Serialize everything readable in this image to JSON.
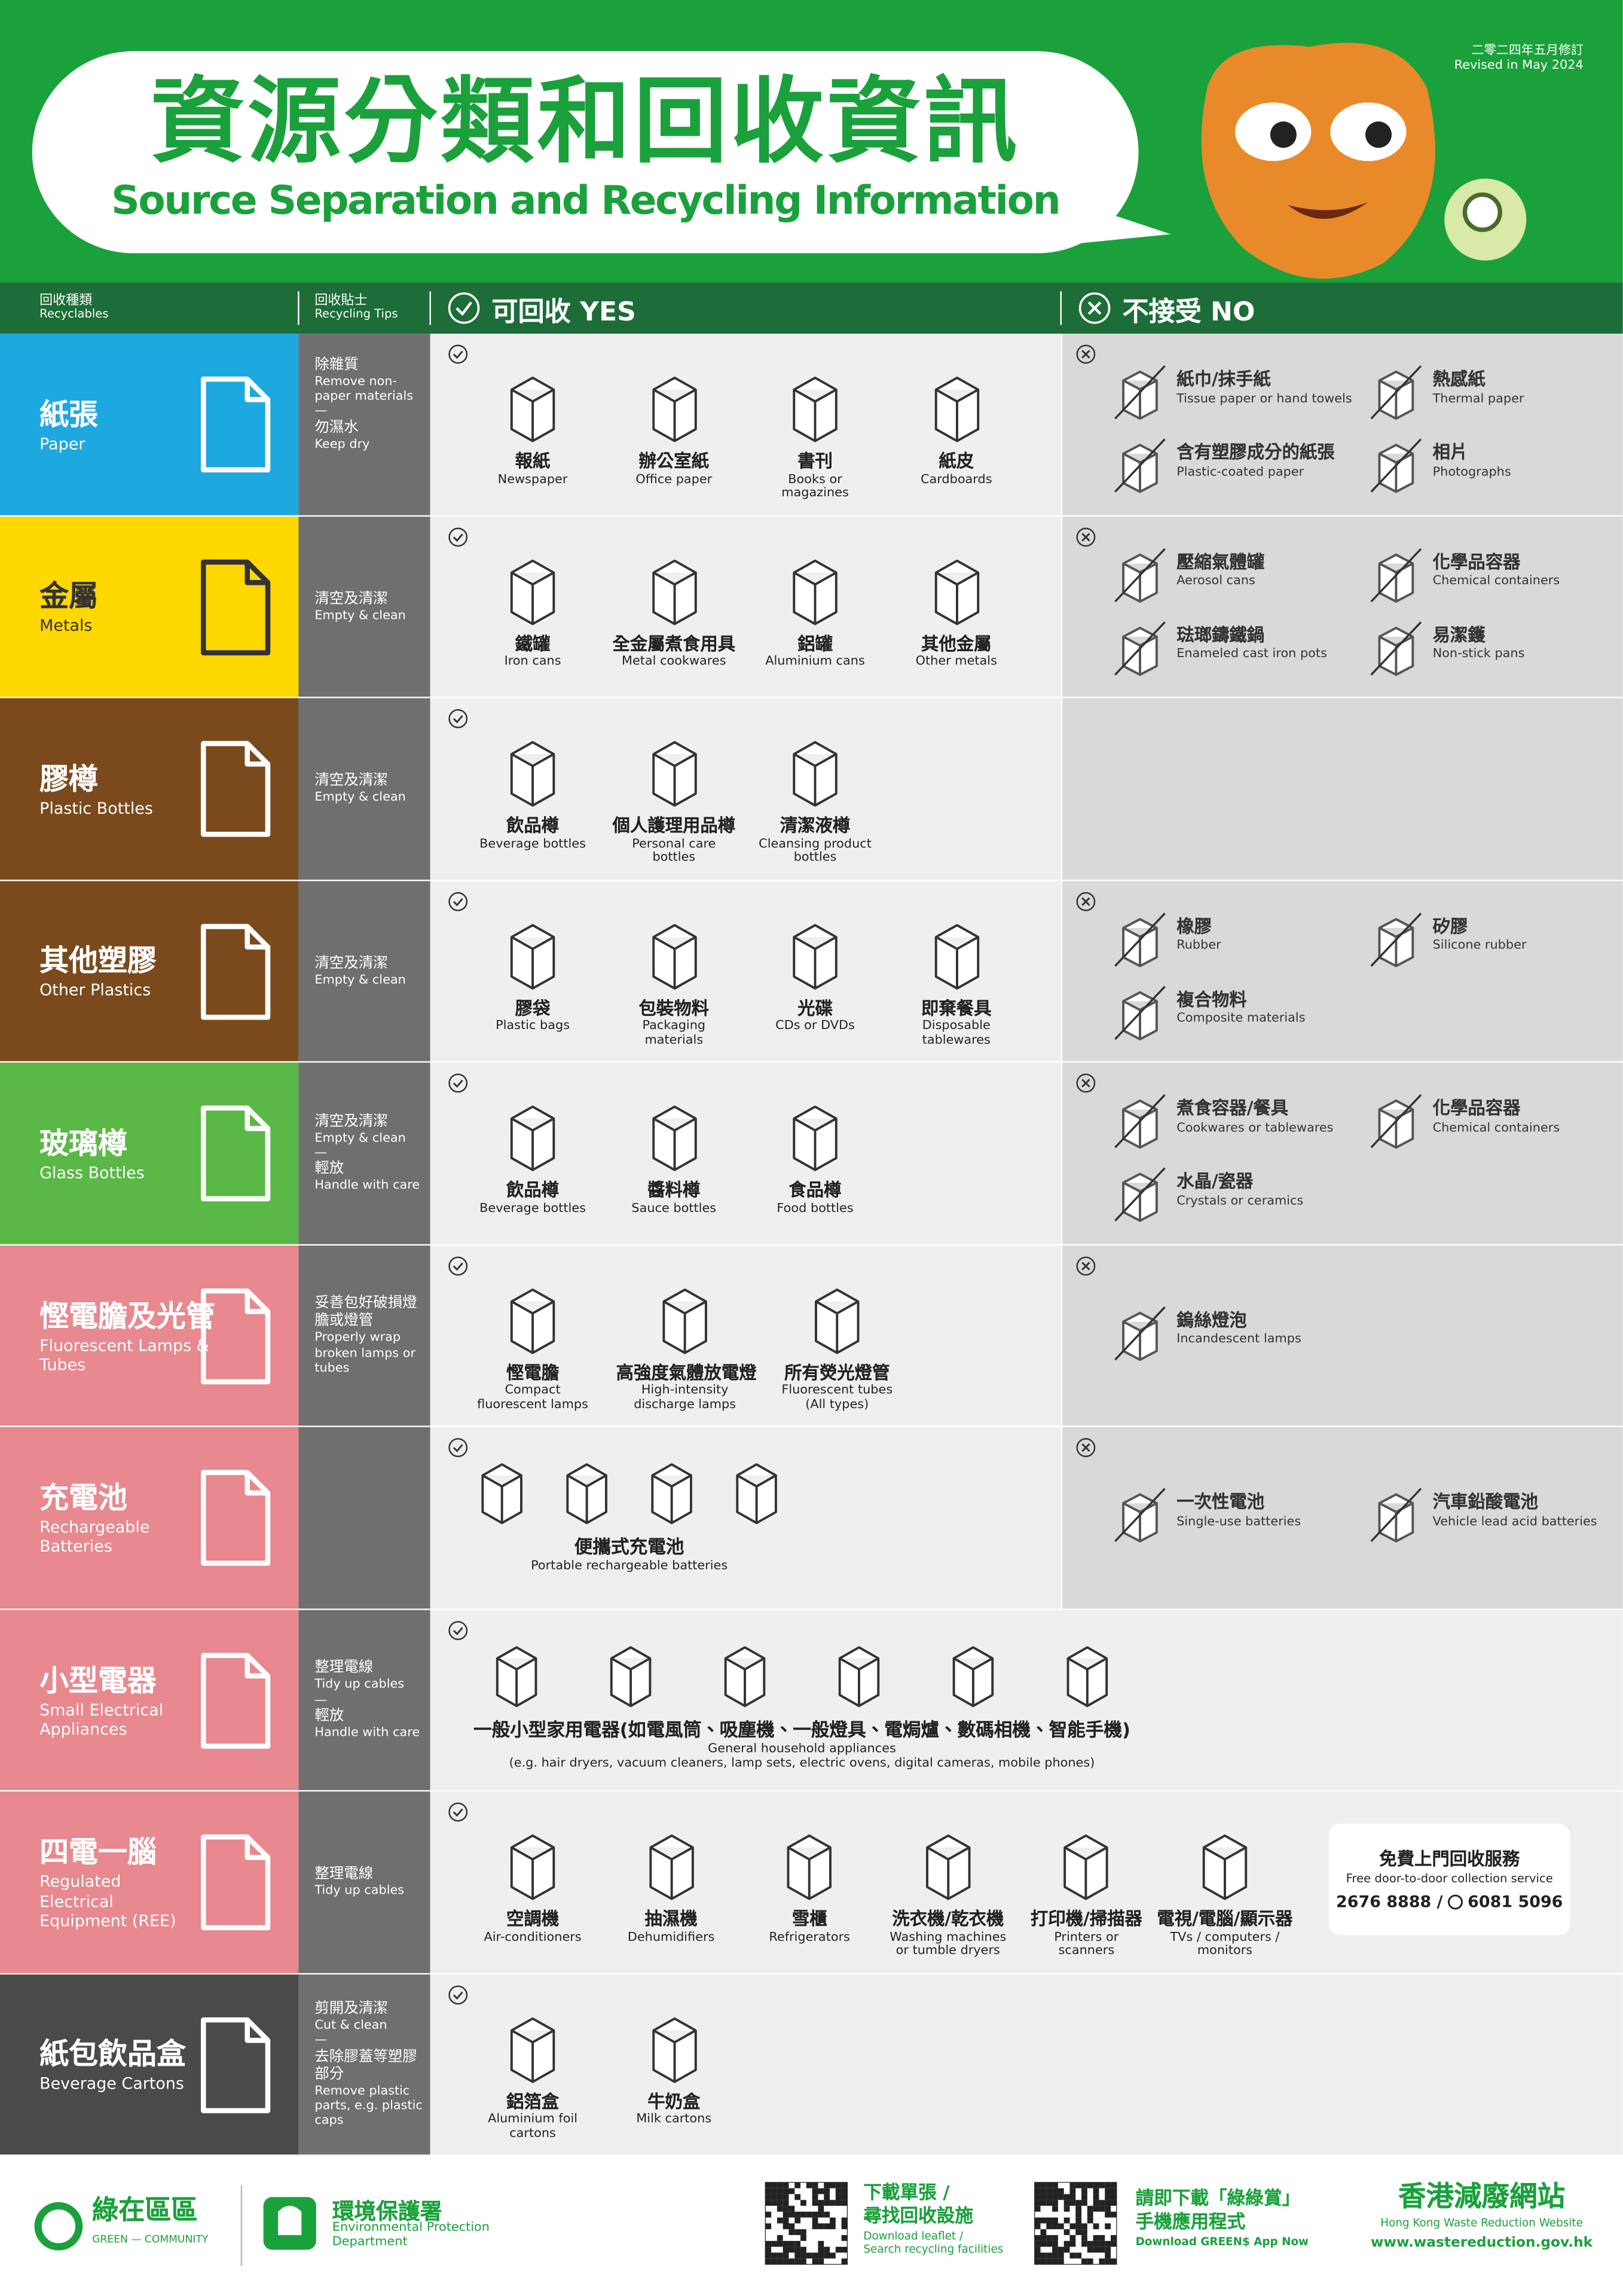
{
  "header": {
    "title_zh": "資源分類和回收資訊",
    "title_en": "Source Separation and Recycling Information",
    "revised_zh": "二零二四年五月修訂",
    "revised_en": "Revised in May 2024"
  },
  "columns": {
    "category_zh": "回收種類",
    "category_en": "Recyclables",
    "tips_zh": "回收貼士",
    "tips_en": "Recycling Tips",
    "yes": "可回收 YES",
    "no": "不接受 NO"
  },
  "rows": [
    {
      "name_zh": "紙張",
      "name_en": "Paper",
      "tips": [
        "除雜質",
        "Remove non-paper materials",
        "—",
        "勿濕水",
        "Keep dry"
      ],
      "yes": [
        {
          "zh": "報紙",
          "en": "Newspaper"
        },
        {
          "zh": "辦公室紙",
          "en": "Office paper"
        },
        {
          "zh": "書刊",
          "en": "Books or magazines"
        },
        {
          "zh": "紙皮",
          "en": "Cardboards"
        }
      ],
      "no": [
        {
          "zh": "紙巾/抹手紙",
          "en": "Tissue paper or hand towels"
        },
        {
          "zh": "熱感紙",
          "en": "Thermal paper"
        },
        {
          "zh": "含有塑膠成分的紙張",
          "en": "Plastic-coated paper"
        },
        {
          "zh": "相片",
          "en": "Photographs"
        }
      ]
    },
    {
      "name_zh": "金屬",
      "name_en": "Metals",
      "tips": [
        "清空及清潔",
        "Empty & clean"
      ],
      "yes": [
        {
          "zh": "鐵罐",
          "en": "Iron cans"
        },
        {
          "zh": "全金屬煮食用具",
          "en": "Metal cookwares"
        },
        {
          "zh": "鋁罐",
          "en": "Aluminium cans"
        },
        {
          "zh": "其他金屬",
          "en": "Other metals"
        }
      ],
      "no": [
        {
          "zh": "壓縮氣體罐",
          "en": "Aerosol cans"
        },
        {
          "zh": "化學品容器",
          "en": "Chemical containers"
        },
        {
          "zh": "琺瑯鑄鐵鍋",
          "en": "Enameled cast iron pots"
        },
        {
          "zh": "易潔鑊",
          "en": "Non-stick pans"
        }
      ]
    },
    {
      "name_zh": "膠樽",
      "name_en": "Plastic Bottles",
      "tips": [
        "清空及清潔",
        "Empty & clean"
      ],
      "yes": [
        {
          "zh": "飲品樽",
          "en": "Beverage bottles"
        },
        {
          "zh": "個人護理用品樽",
          "en": "Personal care bottles"
        },
        {
          "zh": "清潔液樽",
          "en": "Cleansing product bottles"
        }
      ]
    },
    {
      "name_zh": "其他塑膠",
      "name_en": "Other Plastics",
      "tips": [
        "清空及清潔",
        "Empty & clean"
      ],
      "yes": [
        {
          "zh": "膠袋",
          "en": "Plastic bags"
        },
        {
          "zh": "包裝物料",
          "en": "Packaging materials"
        },
        {
          "zh": "光碟",
          "en": "CDs or DVDs"
        },
        {
          "zh": "即棄餐具",
          "en": "Disposable tablewares"
        }
      ],
      "no": [
        {
          "zh": "橡膠",
          "en": "Rubber"
        },
        {
          "zh": "矽膠",
          "en": "Silicone rubber"
        },
        {
          "zh": "複合物料",
          "en": "Composite materials"
        }
      ]
    },
    {
      "name_zh": "玻璃樽",
      "name_en": "Glass Bottles",
      "tips": [
        "清空及清潔",
        "Empty & clean",
        "—",
        "輕放",
        "Handle with care"
      ],
      "yes": [
        {
          "zh": "飲品樽",
          "en": "Beverage bottles"
        },
        {
          "zh": "醬料樽",
          "en": "Sauce bottles"
        },
        {
          "zh": "食品樽",
          "en": "Food bottles"
        }
      ],
      "no": [
        {
          "zh": "煮食容器/餐具",
          "en": "Cookwares or tablewares"
        },
        {
          "zh": "化學品容器",
          "en": "Chemical containers"
        },
        {
          "zh": "水晶/瓷器",
          "en": "Crystals or ceramics"
        }
      ]
    },
    {
      "name_zh": "慳電膽及光管",
      "name_en": "Fluorescent Lamps & Tubes",
      "tips": [
        "妥善包好破損燈膽或燈管",
        "Properly wrap broken lamps or tubes"
      ],
      "yes": [
        {
          "zh": "慳電膽",
          "en": "Compact fluorescent lamps"
        },
        {
          "zh": "高強度氣體放電燈",
          "en": "High-intensity discharge lamps"
        },
        {
          "zh": "所有熒光燈管",
          "en": "Fluorescent tubes (All types)"
        }
      ],
      "no": [
        {
          "zh": "鎢絲燈泡",
          "en": "Incandescent lamps"
        }
      ]
    },
    {
      "name_zh": "充電池",
      "name_en": "Rechargeable Batteries",
      "tips": [],
      "yes": [
        {
          "zh": "便攜式充電池",
          "en": "Portable rechargeable batteries"
        }
      ],
      "no": [
        {
          "zh": "一次性電池",
          "en": "Single-use batteries"
        },
        {
          "zh": "汽車鉛酸電池",
          "en": "Vehicle lead acid batteries"
        }
      ]
    },
    {
      "name_zh": "小型電器",
      "name_en": "Small Electrical Appliances",
      "tips": [
        "整理電線",
        "Tidy up cables",
        "—",
        "輕放",
        "Handle with care"
      ],
      "yes": [
        {
          "zh": "一般小型家用電器(如電風筒、吸塵機、一般燈具、電焗爐、數碼相機、智能手機)",
          "en": "General household appliances",
          "note": "(e.g. hair dryers, vacuum cleaners, lamp sets, electric ovens, digital cameras, mobile phones)"
        }
      ]
    },
    {
      "name_zh": "四電一腦",
      "name_en": "Regulated Electrical Equipment (REE)",
      "tips": [
        "整理電線",
        "Tidy up cables"
      ],
      "yes": [
        {
          "zh": "空調機",
          "en": "Air-conditioners"
        },
        {
          "zh": "抽濕機",
          "en": "Dehumidifiers"
        },
        {
          "zh": "雪櫃",
          "en": "Refrigerators"
        },
        {
          "zh": "洗衣機/乾衣機",
          "en": "Washing machines or tumble dryers"
        },
        {
          "zh": "打印機/掃描器",
          "en": "Printers or scanners"
        },
        {
          "zh": "電視/電腦/顯示器",
          "en": "TVs / computers / monitors"
        }
      ]
    },
    {
      "name_zh": "紙包飲品盒",
      "name_en": "Beverage Cartons",
      "tips": [
        "剪開及清潔",
        "Cut & clean",
        "—",
        "去除膠蓋等塑膠部分",
        "Remove plastic parts, e.g. plastic caps"
      ],
      "yes": [
        {
          "zh": "鋁箔盒",
          "en": "Aluminium foil cartons"
        },
        {
          "zh": "牛奶盒",
          "en": "Milk cartons"
        }
      ]
    }
  ],
  "service": {
    "title_zh": "免費上門回收服務",
    "title_en": "Free door-to-door collection service",
    "phone_1": "2676 8888 /",
    "phone_2": "6081 5096"
  },
  "footer": {
    "brand_zh": "綠在區區",
    "brand_en": "GREEN — COMMUNITY",
    "epd_zh": "環境保護署",
    "epd_en": "Environmental Protection Department",
    "leaflet_zh": [
      "下載單張 /",
      "尋找回收設施"
    ],
    "leaflet_en": [
      "Download leaflet /",
      "Search recycling facilities"
    ],
    "app_zh": [
      "請即下載「綠綠賞」",
      "手機應用程式"
    ],
    "app_en": "Download GREEN$ App Now",
    "site_zh": "香港減廢網站",
    "site_en": "Hong Kong Waste Reduction Website",
    "site_url": "www.wastereduction.gov.hk"
  }
}
